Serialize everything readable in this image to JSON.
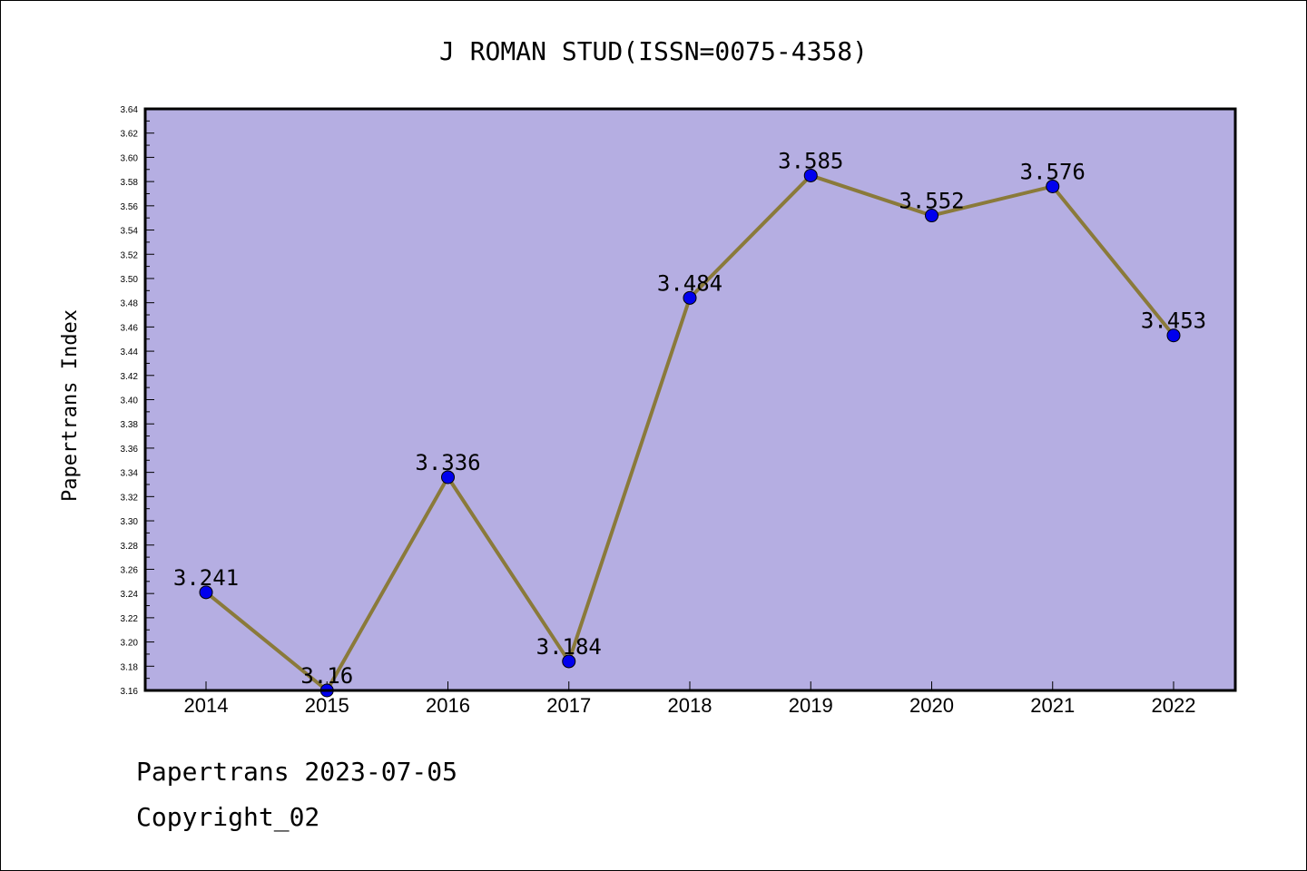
{
  "chart_data": {
    "type": "line",
    "title": "J ROMAN STUD(ISSN=0075-4358)",
    "ylabel": "Papertrans Index",
    "xlabel": "",
    "categories": [
      "2014",
      "2015",
      "2016",
      "2017",
      "2018",
      "2019",
      "2020",
      "2021",
      "2022"
    ],
    "values": [
      3.241,
      3.16,
      3.336,
      3.184,
      3.484,
      3.585,
      3.552,
      3.576,
      3.453
    ],
    "data_labels": [
      "3.241",
      "3.16",
      "3.336",
      "3.184",
      "3.484",
      "3.585",
      "3.552",
      "3.576",
      "3.453"
    ],
    "ylim": [
      3.16,
      3.64
    ],
    "yticks": [
      "3.16",
      "3.18",
      "3.20",
      "3.22",
      "3.24",
      "3.26",
      "3.28",
      "3.30",
      "3.32",
      "3.34",
      "3.36",
      "3.38",
      "3.40",
      "3.42",
      "3.44",
      "3.46",
      "3.48",
      "3.50",
      "3.52",
      "3.54",
      "3.56",
      "3.58",
      "3.60",
      "3.62",
      "3.64"
    ],
    "grid": false,
    "colors": {
      "plot_background": "#b5aee2",
      "line": "#8a7a3a",
      "marker": "#0000ee"
    }
  },
  "footer": {
    "source": "Papertrans 2023-07-05",
    "copyright": "Copyright_02"
  }
}
